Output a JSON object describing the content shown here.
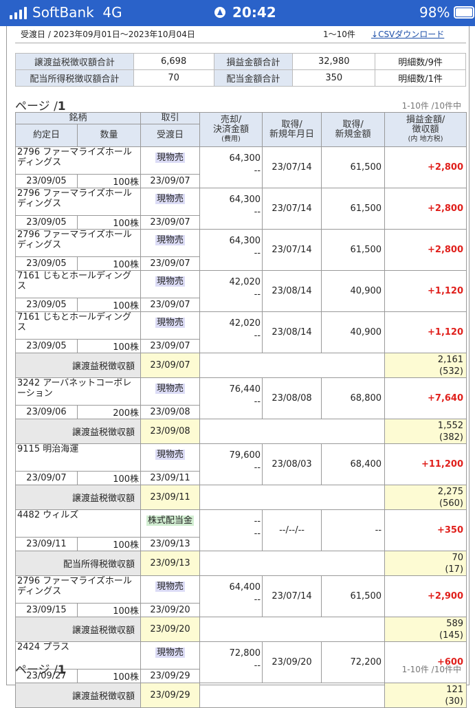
{
  "status_bar": {
    "carrier": "SoftBank",
    "network": "4G",
    "time": "20:42",
    "battery": "98%"
  },
  "header": {
    "range": "受渡日 / 2023年09月01日〜2023年10月04日",
    "count": "1〜10件",
    "csv_label": "CSVダウンロード"
  },
  "summary": [
    {
      "label1": "譲渡益税徴収額合計",
      "value1": "6,698",
      "label2": "損益金額合計",
      "value2": "32,980",
      "detail": "明細数/9件"
    },
    {
      "label1": "配当所得税徴収額合計",
      "value1": "70",
      "label2": "配当金額合計",
      "value2": "350",
      "detail": "明細数/1件"
    }
  ],
  "pager": {
    "label": "ページ /",
    "page": "1",
    "count": "1-10件 /10件中"
  },
  "columns": {
    "meigara": "銘柄",
    "torihiki": "取引",
    "yakujo": "約定日",
    "suryo": "数量",
    "ukewatashi": "受渡日",
    "baikyaku": "売却/",
    "kessai": "決済金額",
    "hiyo": "(費用)",
    "shutoku_date1": "取得/",
    "shutoku_date2": "新規年月日",
    "shutoku_amt1": "取得/",
    "shutoku_amt2": "新規金額",
    "pl1": "損益金額/",
    "pl2": "徴収額",
    "pl3": "(内 地方税)"
  },
  "rows": [
    {
      "kind": "trade",
      "name": "2796 ファーマライズホールディングス",
      "type": "現物売",
      "trade_date": "23/09/05",
      "qty": "100株",
      "settle_date": "23/09/07",
      "sell": "64,300",
      "fee": "--",
      "acq_date": "23/07/14",
      "acq_amt": "61,500",
      "pl": "+2,800"
    },
    {
      "kind": "trade",
      "name": "2796 ファーマライズホールディングス",
      "type": "現物売",
      "trade_date": "23/09/05",
      "qty": "100株",
      "settle_date": "23/09/07",
      "sell": "64,300",
      "fee": "--",
      "acq_date": "23/07/14",
      "acq_amt": "61,500",
      "pl": "+2,800"
    },
    {
      "kind": "trade",
      "name": "2796 ファーマライズホールディングス",
      "type": "現物売",
      "trade_date": "23/09/05",
      "qty": "100株",
      "settle_date": "23/09/07",
      "sell": "64,300",
      "fee": "--",
      "acq_date": "23/07/14",
      "acq_amt": "61,500",
      "pl": "+2,800"
    },
    {
      "kind": "trade",
      "name": "7161 じもとホールディングス",
      "type": "現物売",
      "trade_date": "23/09/05",
      "qty": "100株",
      "settle_date": "23/09/07",
      "sell": "42,020",
      "fee": "--",
      "acq_date": "23/08/14",
      "acq_amt": "40,900",
      "pl": "+1,120"
    },
    {
      "kind": "trade",
      "name": "7161 じもとホールディングス",
      "type": "現物売",
      "trade_date": "23/09/05",
      "qty": "100株",
      "settle_date": "23/09/07",
      "sell": "42,020",
      "fee": "--",
      "acq_date": "23/08/14",
      "acq_amt": "40,900",
      "pl": "+1,120"
    },
    {
      "kind": "tax",
      "label": "譲渡益税徴収額",
      "date": "23/09/07",
      "amount": "2,161",
      "local": "(532)"
    },
    {
      "kind": "trade",
      "name": "3242 アーバネットコーポレーション",
      "type": "現物売",
      "trade_date": "23/09/06",
      "qty": "200株",
      "settle_date": "23/09/08",
      "sell": "76,440",
      "fee": "--",
      "acq_date": "23/08/08",
      "acq_amt": "68,800",
      "pl": "+7,640"
    },
    {
      "kind": "tax",
      "label": "譲渡益税徴収額",
      "date": "23/09/08",
      "amount": "1,552",
      "local": "(382)"
    },
    {
      "kind": "trade",
      "name": "9115 明治海運",
      "type": "現物売",
      "trade_date": "23/09/07",
      "qty": "100株",
      "settle_date": "23/09/11",
      "sell": "79,600",
      "fee": "--",
      "acq_date": "23/08/03",
      "acq_amt": "68,400",
      "pl": "+11,200"
    },
    {
      "kind": "tax",
      "label": "譲渡益税徴収額",
      "date": "23/09/11",
      "amount": "2,275",
      "local": "(560)"
    },
    {
      "kind": "trade",
      "name": "4482 ウィルズ",
      "type": "株式配当金",
      "trade_date": "23/09/11",
      "qty": "100株",
      "settle_date": "23/09/13",
      "sell": "--",
      "fee": "--",
      "acq_date": "--/--/--",
      "acq_amt": "--",
      "pl": "+350"
    },
    {
      "kind": "tax",
      "label": "配当所得税徴収額",
      "date": "23/09/13",
      "amount": "70",
      "local": "(17)"
    },
    {
      "kind": "trade",
      "name": "2796 ファーマライズホールディングス",
      "type": "現物売",
      "trade_date": "23/09/15",
      "qty": "100株",
      "settle_date": "23/09/20",
      "sell": "64,400",
      "fee": "--",
      "acq_date": "23/07/14",
      "acq_amt": "61,500",
      "pl": "+2,900"
    },
    {
      "kind": "tax",
      "label": "譲渡益税徴収額",
      "date": "23/09/20",
      "amount": "589",
      "local": "(145)"
    },
    {
      "kind": "trade",
      "name": "2424 プラス",
      "type": "現物売",
      "trade_date": "23/09/27",
      "qty": "100株",
      "settle_date": "23/09/29",
      "sell": "72,800",
      "fee": "--",
      "acq_date": "23/09/20",
      "acq_amt": "72,200",
      "pl": "+600"
    },
    {
      "kind": "tax",
      "label": "譲渡益税徴収額",
      "date": "23/09/29",
      "amount": "121",
      "local": "(30)"
    }
  ]
}
